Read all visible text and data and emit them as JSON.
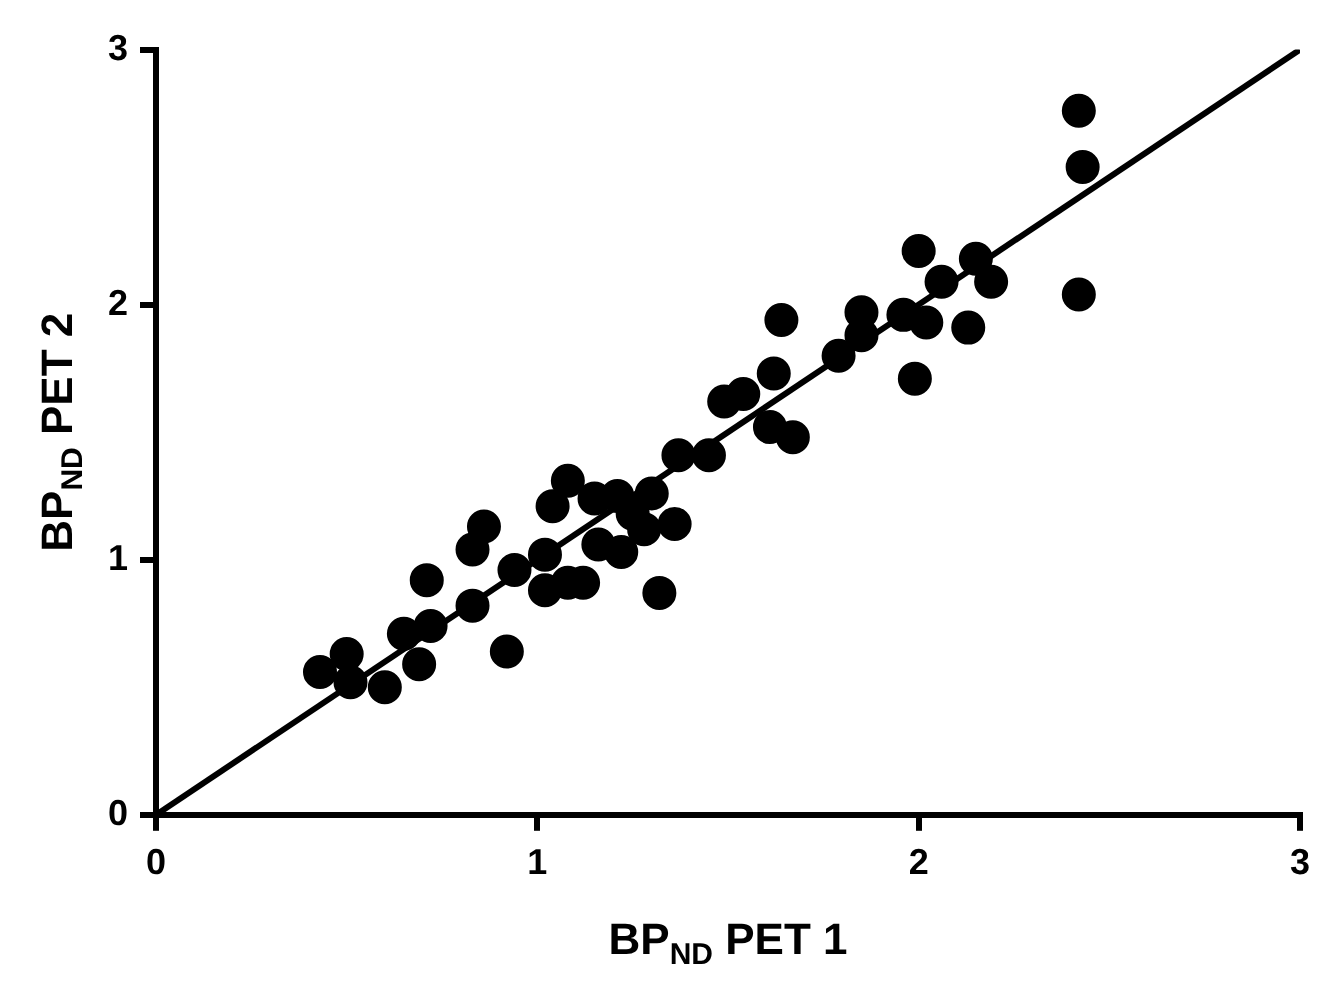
{
  "chart_data": {
    "type": "scatter",
    "xlabel": "BP$_{ND}$ PET 1",
    "ylabel": "BP$_{ND}$ PET 2",
    "xlim": [
      0,
      3
    ],
    "ylim": [
      0,
      3
    ],
    "xticks": [
      0,
      1,
      2,
      3
    ],
    "yticks": [
      0,
      1,
      2,
      3
    ],
    "grid": false,
    "legend": false,
    "marker": "circle",
    "series": [
      {
        "color": "#000000",
        "x": [
          0.43,
          0.5,
          0.51,
          0.6,
          0.65,
          0.69,
          0.72,
          0.71,
          0.83,
          0.83,
          0.86,
          0.92,
          0.94,
          1.02,
          1.02,
          1.08,
          1.08,
          1.04,
          1.16,
          1.21,
          1.22,
          1.49,
          1.54,
          1.61,
          1.67,
          1.37,
          1.45,
          1.36,
          1.32,
          1.3,
          1.25,
          1.28,
          1.12,
          1.15,
          2.42,
          2.43,
          2.42,
          2.0,
          2.15,
          2.19,
          2.06,
          1.96,
          2.02,
          2.13,
          1.99,
          1.85,
          1.85,
          1.79,
          1.64,
          1.62
        ],
        "values": [
          0.56,
          0.63,
          0.52,
          0.5,
          0.71,
          0.59,
          0.74,
          0.92,
          0.82,
          1.04,
          1.13,
          0.64,
          0.96,
          1.02,
          0.88,
          0.91,
          1.31,
          1.21,
          1.06,
          1.25,
          1.03,
          1.62,
          1.65,
          1.52,
          1.48,
          1.41,
          1.41,
          1.14,
          0.87,
          1.26,
          1.18,
          1.12,
          0.91,
          1.24,
          2.76,
          2.54,
          2.04,
          2.21,
          2.18,
          2.09,
          2.09,
          1.96,
          1.93,
          1.91,
          1.71,
          1.97,
          1.88,
          1.8,
          1.94,
          1.73
        ]
      },
      {
        "type": "line",
        "marker": "none",
        "color": "#000000",
        "x": [
          0,
          3
        ],
        "values": [
          0,
          3
        ]
      }
    ]
  }
}
